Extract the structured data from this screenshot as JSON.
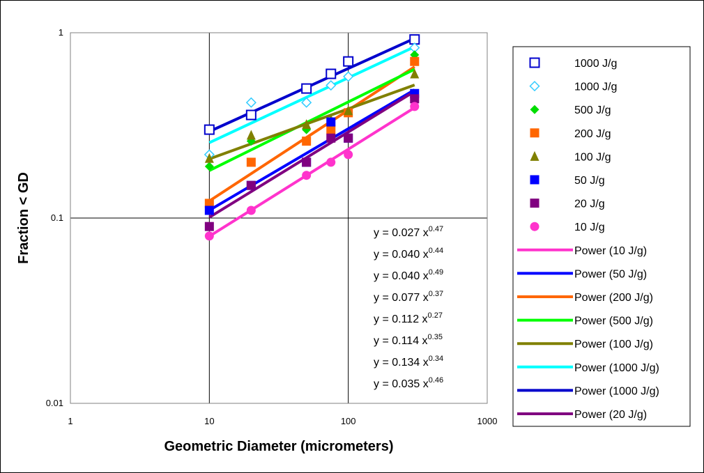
{
  "chart_data": {
    "type": "scatter",
    "title": "",
    "xlabel": "Geometric Diameter (micrometers)",
    "ylabel": "Fraction < GD",
    "x_scale": "log",
    "y_scale": "log",
    "xlim": [
      1,
      1000
    ],
    "ylim": [
      0.01,
      1
    ],
    "x_ticks": [
      "1",
      "10",
      "100",
      "1000"
    ],
    "y_ticks": [
      "0.01",
      "0.1",
      "1"
    ],
    "grid": "major",
    "legend_position": "right",
    "series": [
      {
        "name": "1000 J/g",
        "marker": "square-open",
        "color": "#0000CC",
        "x": [
          10,
          20,
          50,
          75,
          100,
          300
        ],
        "y": [
          0.3,
          0.36,
          0.5,
          0.6,
          0.7,
          0.92
        ]
      },
      {
        "name": "1000 J/g",
        "marker": "diamond-open",
        "color": "#33CCFF",
        "x": [
          10,
          20,
          50,
          75,
          100,
          300
        ],
        "y": [
          0.22,
          0.42,
          0.42,
          0.52,
          0.58,
          0.83
        ]
      },
      {
        "name": "500 J/g",
        "marker": "diamond",
        "color": "#00DD00",
        "x": [
          10,
          20,
          50,
          75,
          100,
          300
        ],
        "y": [
          0.19,
          0.26,
          0.3,
          0.33,
          0.37,
          0.76
        ]
      },
      {
        "name": "200 J/g",
        "marker": "square",
        "color": "#FF6600",
        "x": [
          10,
          20,
          50,
          75,
          100,
          300
        ],
        "y": [
          0.12,
          0.2,
          0.26,
          0.3,
          0.37,
          0.7
        ]
      },
      {
        "name": "100 J/g",
        "marker": "triangle",
        "color": "#808000",
        "x": [
          10,
          20,
          50,
          75,
          100,
          300
        ],
        "y": [
          0.21,
          0.28,
          0.32,
          0.34,
          0.38,
          0.6
        ]
      },
      {
        "name": "50 J/g",
        "marker": "square",
        "color": "#0000FF",
        "x": [
          10,
          20,
          50,
          75,
          100,
          300
        ],
        "y": [
          0.11,
          0.15,
          0.2,
          0.33,
          0.27,
          0.47
        ]
      },
      {
        "name": "20 J/g",
        "marker": "square",
        "color": "#800080",
        "x": [
          10,
          20,
          50,
          75,
          100,
          300
        ],
        "y": [
          0.09,
          0.15,
          0.2,
          0.27,
          0.27,
          0.44
        ]
      },
      {
        "name": "10 J/g",
        "marker": "circle",
        "color": "#FF33CC",
        "x": [
          10,
          20,
          50,
          75,
          100,
          300
        ],
        "y": [
          0.08,
          0.11,
          0.17,
          0.2,
          0.22,
          0.4
        ]
      }
    ],
    "fits": [
      {
        "name": "Power (10 J/g)",
        "color": "#FF33CC",
        "a": 0.027,
        "b": 0.47
      },
      {
        "name": "Power (50 J/g)",
        "color": "#0000FF",
        "a": 0.04,
        "b": 0.44
      },
      {
        "name": "Power (200 J/g)",
        "color": "#FF6600",
        "a": 0.04,
        "b": 0.49
      },
      {
        "name": "Power (500 J/g)",
        "color": "#00FF00",
        "a": 0.077,
        "b": 0.37
      },
      {
        "name": "Power (100 J/g)",
        "color": "#808000",
        "a": 0.112,
        "b": 0.27
      },
      {
        "name": "Power (1000 J/g)",
        "color": "#00FFFF",
        "a": 0.114,
        "b": 0.35
      },
      {
        "name": "Power (1000 J/g)",
        "color": "#0000CC",
        "a": 0.134,
        "b": 0.34
      },
      {
        "name": "Power (20 J/g)",
        "color": "#800080",
        "a": 0.035,
        "b": 0.46
      }
    ],
    "equations": [
      {
        "coef": "y = 0.027 x",
        "exp": "0.47"
      },
      {
        "coef": "y = 0.040 x",
        "exp": "0.44"
      },
      {
        "coef": "y = 0.040 x",
        "exp": "0.49"
      },
      {
        "coef": "y = 0.077 x",
        "exp": "0.37"
      },
      {
        "coef": "y = 0.112 x",
        "exp": "0.27"
      },
      {
        "coef": "y = 0.114 x",
        "exp": "0.35"
      },
      {
        "coef": "y = 0.134 x",
        "exp": "0.34"
      },
      {
        "coef": "y = 0.035 x",
        "exp": "0.46"
      }
    ]
  }
}
